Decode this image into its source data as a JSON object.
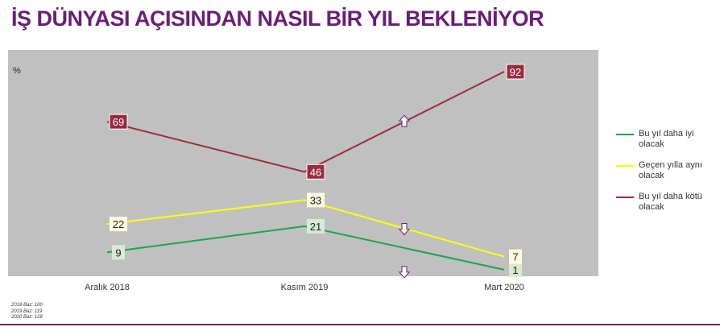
{
  "title": "İŞ DÜNYASI AÇISINDAN NASIL BİR YIL BEKLENİYOR",
  "footnotes": [
    "2018 Baz: 100",
    "2019 Baz: 119",
    "2020 Baz: 128"
  ],
  "colors": {
    "title": "#6a1e77",
    "plot_bg": "#c0c0c0"
  },
  "chart_data": {
    "type": "line",
    "unit_label": "%",
    "categories": [
      "Aralık 2018",
      "Kasım 2019",
      "Mart 2020"
    ],
    "series": [
      {
        "name": "Bu yıl daha iyi olacak",
        "values": [
          9,
          21,
          1
        ],
        "color": "#1aa54b",
        "label_bg": "#d6ebd2"
      },
      {
        "name": "Geçen yılla aynı olacak",
        "values": [
          22,
          33,
          7
        ],
        "color": "#ffff00",
        "label_bg": "#fffce0"
      },
      {
        "name": "Bu yıl daha kötü olacak",
        "values": [
          69,
          46,
          92
        ],
        "color": "#9a2b3e",
        "label_bg": "#9a2b3e"
      }
    ],
    "change_arrows": [
      {
        "series": "Bu yıl daha kötü olacak",
        "direction": "up"
      },
      {
        "series": "Geçen yılla aynı olacak",
        "direction": "down"
      },
      {
        "series": "Bu yıl daha iyi olacak",
        "direction": "down"
      }
    ],
    "ylim": [
      -2,
      102
    ],
    "grid": false,
    "legend_position": "right"
  }
}
